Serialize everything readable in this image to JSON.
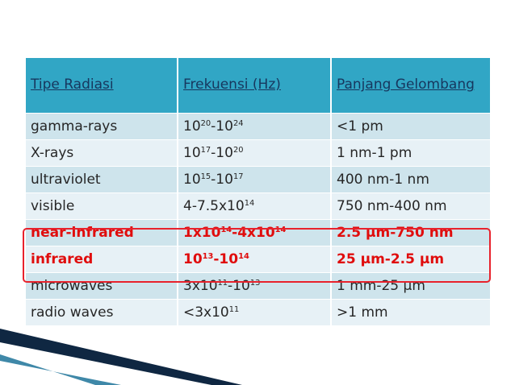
{
  "table": {
    "headers": [
      "Tipe Radiasi",
      "Frekuensi (Hz)",
      "Panjang Gelombang"
    ],
    "rows": [
      {
        "type": "gamma-rays",
        "freq": [
          "10",
          "20",
          "-10",
          "24"
        ],
        "wave": "<1 pm"
      },
      {
        "type": "X-rays",
        "freq": [
          "10",
          "17",
          "-10",
          "20"
        ],
        "wave": "1 nm-1 pm"
      },
      {
        "type": "ultraviolet",
        "freq": [
          "10",
          "15",
          "-10",
          "17"
        ],
        "wave": "400 nm-1 nm"
      },
      {
        "type": "visible",
        "freq": [
          "4-7.5x10",
          "14"
        ],
        "wave": "750 nm-400 nm"
      },
      {
        "type": "near-infrared",
        "freq": [
          "1x10",
          "14",
          "-4x10",
          "14"
        ],
        "wave": "2.5 µm-750 nm",
        "highlight": true
      },
      {
        "type": "infrared",
        "freq": [
          "10",
          "13",
          "-10",
          "14"
        ],
        "wave": "25 µm-2.5 µm",
        "highlight": true
      },
      {
        "type": "microwaves",
        "freq": [
          "3x10",
          "11",
          "-10",
          "13"
        ],
        "wave": "1 mm-25 µm"
      },
      {
        "type": "radio waves",
        "freq": [
          "<3x10",
          "11"
        ],
        "wave": ">1 mm"
      }
    ]
  },
  "colors": {
    "header_bg": "#31a6c5",
    "header_text": "#17375e",
    "row_odd": "#cee4ec",
    "row_even": "#e7f1f6",
    "highlight_text": "#e00d0d",
    "highlight_border": "#e8222c",
    "corner_dark": "#0f2742",
    "corner_light": "#3f88a8"
  }
}
